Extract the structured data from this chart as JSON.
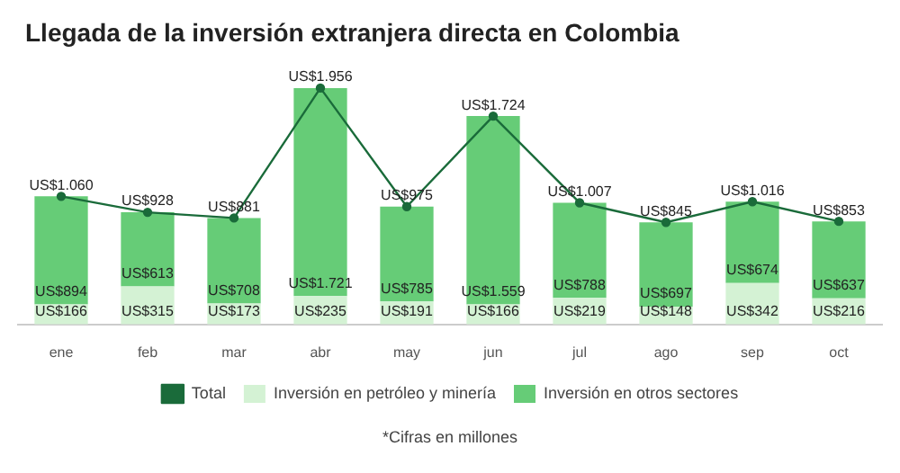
{
  "chart_data": {
    "type": "bar",
    "title": "Llegada de la inversión extranjera directa en Colombia",
    "categories": [
      "ene",
      "feb",
      "mar",
      "abr",
      "may",
      "jun",
      "jul",
      "ago",
      "sep",
      "oct"
    ],
    "stacked": true,
    "legend": "bottom",
    "marker": "circle",
    "series": [
      {
        "name": "Inversión en petróleo y minería",
        "color": "#d4f2d4",
        "values": [
          166,
          315,
          173,
          235,
          191,
          166,
          219,
          148,
          342,
          216
        ],
        "value_labels": [
          "US$166",
          "US$315",
          "US$173",
          "US$235",
          "US$191",
          "US$166",
          "US$219",
          "US$148",
          "US$342",
          "US$216"
        ]
      },
      {
        "name": "Inversión en otros sectores",
        "color": "#66cc77",
        "values": [
          894,
          613,
          708,
          1721,
          785,
          1559,
          788,
          697,
          674,
          637
        ],
        "value_labels": [
          "US$894",
          "US$613",
          "US$708",
          "US$1.721",
          "US$785",
          "US$1.559",
          "US$788",
          "US$697",
          "US$674",
          "US$637"
        ]
      },
      {
        "name": "Total",
        "type": "line",
        "color": "#1a6b3a",
        "values": [
          1060,
          928,
          881,
          1956,
          975,
          1724,
          1007,
          845,
          1016,
          853
        ],
        "value_labels": [
          "US$1.060",
          "US$928",
          "US$881",
          "US$1.956",
          "US$975",
          "US$1.724",
          "US$1.007",
          "US$845",
          "US$1.016",
          "US$853"
        ]
      }
    ],
    "annotations": [
      "*Cifras en millones"
    ]
  }
}
